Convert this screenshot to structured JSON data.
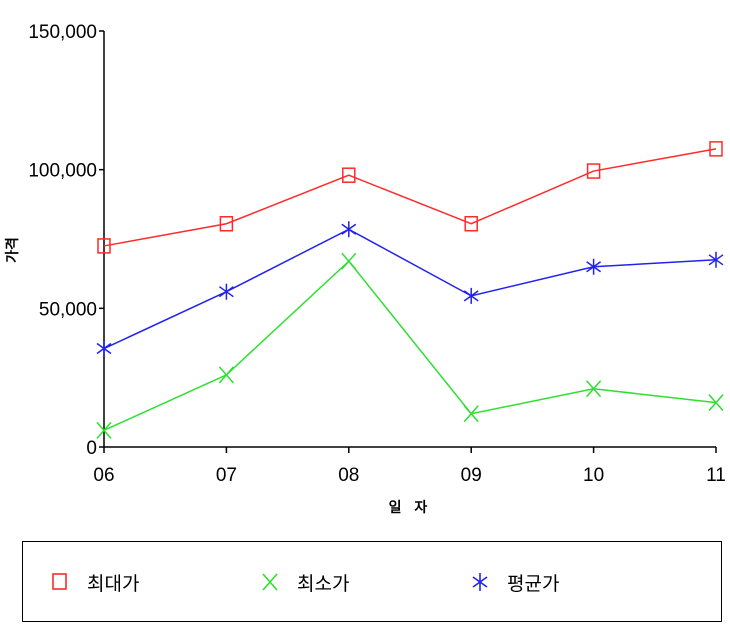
{
  "chart_data": {
    "type": "line",
    "categories": [
      "06",
      "07",
      "08",
      "09",
      "10",
      "11"
    ],
    "ylim": [
      0,
      150000
    ],
    "yticks": [
      0,
      50000,
      100000,
      150000
    ],
    "ytick_labels": [
      "0",
      "50,000",
      "100,000",
      "150,000"
    ],
    "xlabel": "일 자",
    "ylabel": "가격",
    "grid": false,
    "legend_position": "bottom",
    "series": [
      {
        "name": "최대가",
        "color": "#ff2a2a",
        "marker": "square",
        "values": [
          72500,
          80500,
          98000,
          80500,
          99500,
          107500
        ]
      },
      {
        "name": "최소가",
        "color": "#2ee02e",
        "marker": "x",
        "values": [
          6000,
          26000,
          67000,
          12000,
          21000,
          16000
        ]
      },
      {
        "name": "평균가",
        "color": "#2222ee",
        "marker": "asterisk",
        "values": [
          35500,
          56000,
          78500,
          54500,
          65000,
          67500
        ]
      }
    ]
  }
}
